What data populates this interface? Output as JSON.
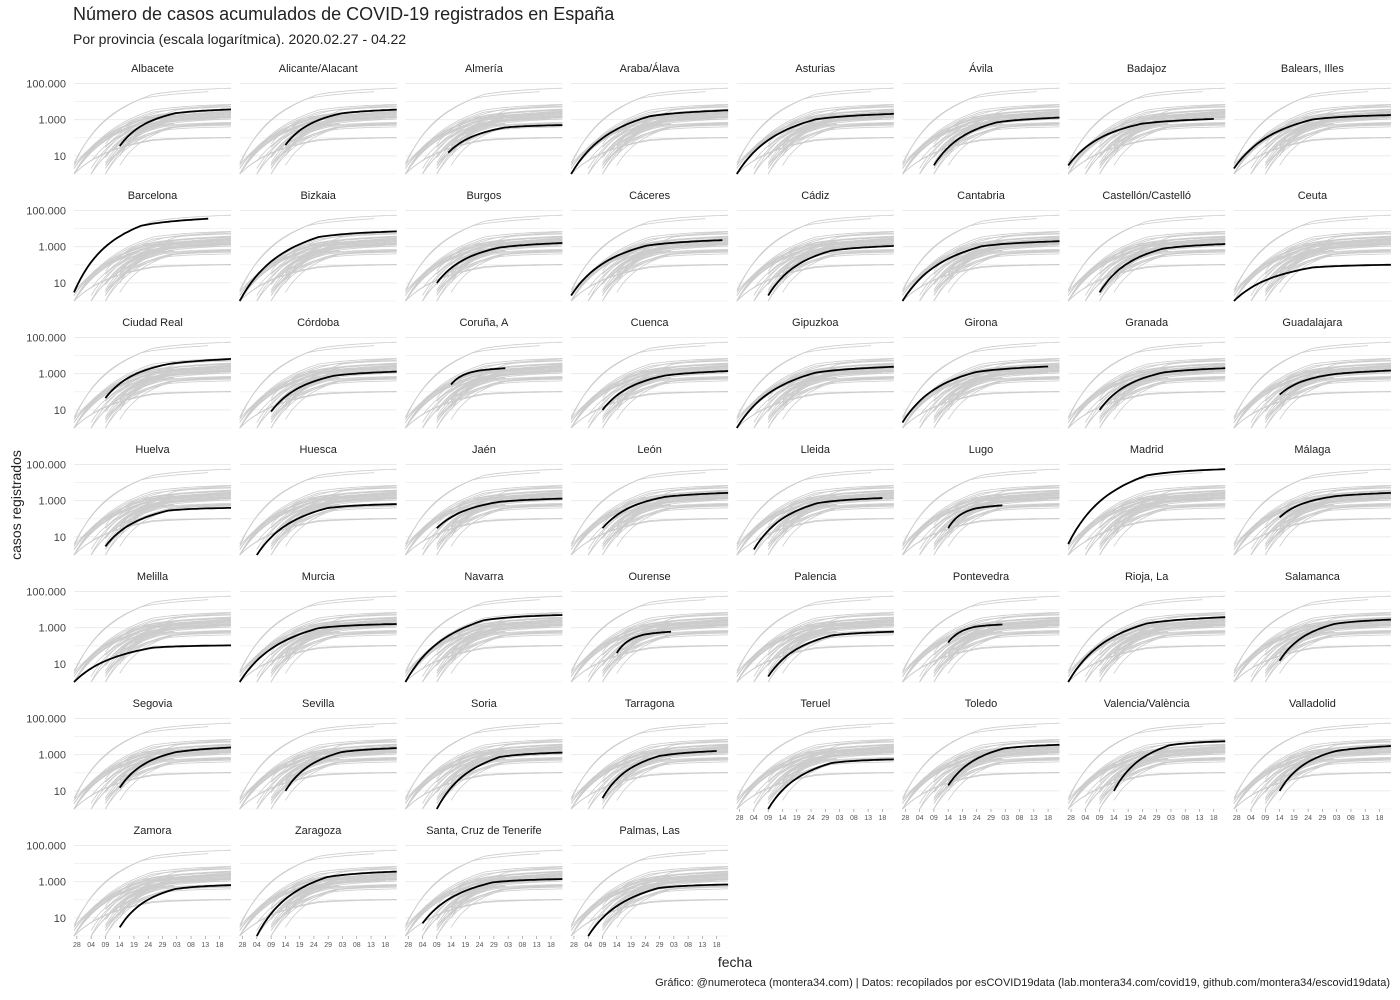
{
  "chart": {
    "title": "Número de casos acumulados de COVID-19 registrados en España",
    "subtitle": "Por provincia (escala logarítmica). 2020.02.27 - 04.22",
    "xlabel": "fecha",
    "ylabel": "casos registrados",
    "caption": "Gráfico: @numeroteca (montera34.com) | Datos: recopilados por esCOVID19data (lab.montera34.com/covid19, github.com/montera34/escovid19data)"
  },
  "colors": {
    "highlight": "#000000",
    "background_lines": "#cccccc",
    "gridline": "#ebebeb"
  },
  "chart_data": {
    "type": "line",
    "scale_y": "log10",
    "ylim": [
      1,
      200000
    ],
    "ytick_values": [
      10,
      1000,
      100000
    ],
    "ytick_labels": [
      "10",
      "1.000",
      "100.000"
    ],
    "xlim": [
      "2020-02-27",
      "2020-04-22"
    ],
    "xtick_labels": [
      "28",
      "04",
      "09",
      "14",
      "19",
      "24",
      "29",
      "03",
      "08",
      "13",
      "18"
    ],
    "xtick_dates": [
      "2020-02-28",
      "2020-03-04",
      "2020-03-09",
      "2020-03-14",
      "2020-03-19",
      "2020-03-24",
      "2020-03-29",
      "2020-04-03",
      "2020-04-08",
      "2020-04-13",
      "2020-04-18"
    ],
    "facets": [
      {
        "name": "Albacete",
        "start": "2020-03-14",
        "end": "2020-04-22",
        "start_value": 35,
        "end_value": 3700,
        "half_value": 1500
      },
      {
        "name": "Alicante/Alacant",
        "start": "2020-03-14",
        "end": "2020-04-22",
        "start_value": 40,
        "end_value": 3600,
        "half_value": 1400
      },
      {
        "name": "Almería",
        "start": "2020-03-13",
        "end": "2020-04-22",
        "start_value": 15,
        "end_value": 500,
        "half_value": 330
      },
      {
        "name": "Araba/Álava",
        "start": "2020-02-27",
        "end": "2020-04-22",
        "start_value": 1,
        "end_value": 3300,
        "half_value": 1000
      },
      {
        "name": "Asturias",
        "start": "2020-02-27",
        "end": "2020-04-22",
        "start_value": 1,
        "end_value": 2100,
        "half_value": 700
      },
      {
        "name": "Ávila",
        "start": "2020-03-09",
        "end": "2020-04-22",
        "start_value": 3,
        "end_value": 1300,
        "half_value": 450
      },
      {
        "name": "Badajoz",
        "start": "2020-02-27",
        "end": "2020-04-18",
        "start_value": 3,
        "end_value": 1100,
        "half_value": 350
      },
      {
        "name": "Balears, Illes",
        "start": "2020-02-27",
        "end": "2020-04-22",
        "start_value": 2,
        "end_value": 1800,
        "half_value": 900
      },
      {
        "name": "Barcelona",
        "start": "2020-02-27",
        "end": "2020-04-14",
        "start_value": 3,
        "end_value": 35000,
        "half_value": 8000
      },
      {
        "name": "Bizkaia",
        "start": "2020-02-27",
        "end": "2020-04-22",
        "start_value": 1,
        "end_value": 7000,
        "half_value": 2800
      },
      {
        "name": "Burgos",
        "start": "2020-03-09",
        "end": "2020-04-22",
        "start_value": 10,
        "end_value": 1600,
        "half_value": 500
      },
      {
        "name": "Cáceres",
        "start": "2020-02-27",
        "end": "2020-04-20",
        "start_value": 2,
        "end_value": 2300,
        "half_value": 700
      },
      {
        "name": "Cádiz",
        "start": "2020-03-09",
        "end": "2020-04-22",
        "start_value": 2,
        "end_value": 1100,
        "half_value": 400
      },
      {
        "name": "Cantabria",
        "start": "2020-02-27",
        "end": "2020-04-22",
        "start_value": 1,
        "end_value": 2000,
        "half_value": 800
      },
      {
        "name": "Castellón/Castelló",
        "start": "2020-03-09",
        "end": "2020-04-22",
        "start_value": 3,
        "end_value": 1400,
        "half_value": 500
      },
      {
        "name": "Ceuta",
        "start": "2020-02-27",
        "end": "2020-04-22",
        "start_value": 1,
        "end_value": 100,
        "half_value": 70
      },
      {
        "name": "Ciudad Real",
        "start": "2020-03-09",
        "end": "2020-04-22",
        "start_value": 45,
        "end_value": 6500,
        "half_value": 1500
      },
      {
        "name": "Córdoba",
        "start": "2020-03-09",
        "end": "2020-04-22",
        "start_value": 8,
        "end_value": 1300,
        "half_value": 500
      },
      {
        "name": "Coruña, A",
        "start": "2020-03-14",
        "end": "2020-04-02",
        "start_value": 250,
        "end_value": 2000,
        "half_value": 900
      },
      {
        "name": "Cuenca",
        "start": "2020-03-09",
        "end": "2020-04-22",
        "start_value": 10,
        "end_value": 1400,
        "half_value": 450
      },
      {
        "name": "Gipuzkoa",
        "start": "2020-02-27",
        "end": "2020-04-22",
        "start_value": 1,
        "end_value": 2400,
        "half_value": 700
      },
      {
        "name": "Girona",
        "start": "2020-02-27",
        "end": "2020-04-18",
        "start_value": 2,
        "end_value": 2500,
        "half_value": 700
      },
      {
        "name": "Granada",
        "start": "2020-03-09",
        "end": "2020-04-22",
        "start_value": 10,
        "end_value": 2000,
        "half_value": 700
      },
      {
        "name": "Guadalajara",
        "start": "2020-03-14",
        "end": "2020-04-22",
        "start_value": 70,
        "end_value": 1500,
        "half_value": 500
      },
      {
        "name": "Huelva",
        "start": "2020-03-09",
        "end": "2020-04-22",
        "start_value": 3,
        "end_value": 400,
        "half_value": 300
      },
      {
        "name": "Huesca",
        "start": "2020-03-04",
        "end": "2020-04-22",
        "start_value": 1,
        "end_value": 650,
        "half_value": 350
      },
      {
        "name": "Jaén",
        "start": "2020-03-09",
        "end": "2020-04-22",
        "start_value": 30,
        "end_value": 1300,
        "half_value": 600
      },
      {
        "name": "León",
        "start": "2020-03-09",
        "end": "2020-04-22",
        "start_value": 30,
        "end_value": 2700,
        "half_value": 1000
      },
      {
        "name": "Lleida",
        "start": "2020-03-04",
        "end": "2020-04-18",
        "start_value": 2,
        "end_value": 1400,
        "half_value": 500
      },
      {
        "name": "Lugo",
        "start": "2020-03-14",
        "end": "2020-04-02",
        "start_value": 30,
        "end_value": 550,
        "half_value": 220
      },
      {
        "name": "Madrid",
        "start": "2020-02-27",
        "end": "2020-04-22",
        "start_value": 4,
        "end_value": 55000,
        "half_value": 20000
      },
      {
        "name": "Málaga",
        "start": "2020-03-14",
        "end": "2020-04-22",
        "start_value": 120,
        "end_value": 2700,
        "half_value": 1000
      },
      {
        "name": "Melilla",
        "start": "2020-02-27",
        "end": "2020-04-22",
        "start_value": 1,
        "end_value": 105,
        "half_value": 95
      },
      {
        "name": "Murcia",
        "start": "2020-02-27",
        "end": "2020-04-22",
        "start_value": 1,
        "end_value": 1600,
        "half_value": 1000
      },
      {
        "name": "Navarra",
        "start": "2020-02-27",
        "end": "2020-04-22",
        "start_value": 1,
        "end_value": 5000,
        "half_value": 2500
      },
      {
        "name": "Ourense",
        "start": "2020-03-14",
        "end": "2020-04-02",
        "start_value": 40,
        "end_value": 600,
        "half_value": 250
      },
      {
        "name": "Palencia",
        "start": "2020-03-09",
        "end": "2020-04-22",
        "start_value": 2,
        "end_value": 600,
        "half_value": 300
      },
      {
        "name": "Pontevedra",
        "start": "2020-03-14",
        "end": "2020-04-02",
        "start_value": 150,
        "end_value": 1500,
        "half_value": 800
      },
      {
        "name": "Rioja, La",
        "start": "2020-02-27",
        "end": "2020-04-22",
        "start_value": 1,
        "end_value": 3800,
        "half_value": 1000
      },
      {
        "name": "Salamanca",
        "start": "2020-03-14",
        "end": "2020-04-22",
        "start_value": 15,
        "end_value": 2800,
        "half_value": 1100
      },
      {
        "name": "Segovia",
        "start": "2020-03-14",
        "end": "2020-04-22",
        "start_value": 15,
        "end_value": 2500,
        "half_value": 700
      },
      {
        "name": "Sevilla",
        "start": "2020-03-14",
        "end": "2020-04-22",
        "start_value": 10,
        "end_value": 2300,
        "half_value": 1000
      },
      {
        "name": "Soria",
        "start": "2020-03-09",
        "end": "2020-04-22",
        "start_value": 1,
        "end_value": 1300,
        "half_value": 700
      },
      {
        "name": "Tarragona",
        "start": "2020-03-09",
        "end": "2020-04-18",
        "start_value": 4,
        "end_value": 1600,
        "half_value": 500
      },
      {
        "name": "Teruel",
        "start": "2020-03-09",
        "end": "2020-04-22",
        "start_value": 1,
        "end_value": 550,
        "half_value": 350
      },
      {
        "name": "Toledo",
        "start": "2020-03-14",
        "end": "2020-04-22",
        "start_value": 20,
        "end_value": 3500,
        "half_value": 1700
      },
      {
        "name": "Valencia/València",
        "start": "2020-03-14",
        "end": "2020-04-22",
        "start_value": 10,
        "end_value": 5500,
        "half_value": 3000
      },
      {
        "name": "Valladolid",
        "start": "2020-03-14",
        "end": "2020-04-22",
        "start_value": 10,
        "end_value": 3000,
        "half_value": 800
      },
      {
        "name": "Zamora",
        "start": "2020-03-14",
        "end": "2020-04-22",
        "start_value": 3,
        "end_value": 650,
        "half_value": 300
      },
      {
        "name": "Zaragoza",
        "start": "2020-03-04",
        "end": "2020-04-22",
        "start_value": 1,
        "end_value": 3600,
        "half_value": 1400
      },
      {
        "name": "Santa, Cruz de Tenerife",
        "start": "2020-03-04",
        "end": "2020-04-22",
        "start_value": 5,
        "end_value": 1400,
        "half_value": 900
      },
      {
        "name": "Palmas, Las",
        "start": "2020-03-04",
        "end": "2020-04-22",
        "start_value": 1,
        "end_value": 700,
        "half_value": 500
      }
    ]
  }
}
